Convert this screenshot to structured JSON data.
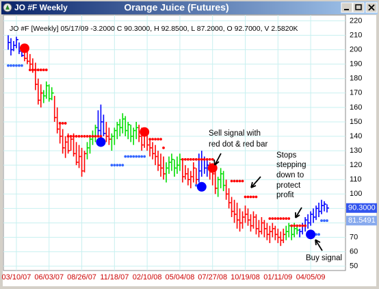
{
  "chart_data": {
    "type": "ohlc",
    "window_title": "JO #F Weekly",
    "title": "Orange Juice (Futures)",
    "info": "JO #F [Weekly] 05/17/09 -3.2000 C 90.3000, H 92.8500, L 87.2000, O 92.7000, V 2.5820K",
    "categories": [
      null,
      null,
      null,
      "03/10/07",
      null,
      null,
      null,
      null,
      null,
      null,
      null,
      null,
      null,
      null,
      null,
      "06/03/07",
      null,
      null,
      null,
      null,
      null,
      null,
      null,
      null,
      null,
      null,
      null,
      "08/26/07",
      null,
      null,
      null,
      null,
      null,
      null,
      null,
      null,
      null,
      null,
      null,
      "11/18/07",
      null,
      null,
      null,
      null,
      null,
      null,
      null,
      null,
      null,
      null,
      null,
      "02/10/08",
      null,
      null,
      null,
      null,
      null,
      null,
      null,
      null,
      null,
      null,
      null,
      "05/04/08",
      null,
      null,
      null,
      null,
      null,
      null,
      null,
      null,
      null,
      null,
      null,
      "07/27/08",
      null,
      null,
      null,
      null,
      null,
      null,
      null,
      null,
      null,
      null,
      null,
      "10/19/08",
      null,
      null,
      null,
      null,
      null,
      null,
      null,
      null,
      null,
      null,
      null,
      "01/11/09",
      null,
      null,
      null,
      null,
      null,
      null,
      null,
      null,
      null,
      null,
      null,
      "04/05/09",
      null,
      null,
      null,
      null,
      null,
      null
    ],
    "bars": [
      [
        210,
        200,
        205
      ],
      [
        208,
        196,
        200
      ],
      [
        206,
        199,
        203
      ],
      [
        209,
        201,
        207
      ],
      [
        205,
        197,
        199
      ],
      [
        203,
        195,
        196
      ],
      [
        202,
        192,
        194
      ],
      [
        199,
        190,
        192
      ],
      [
        197,
        187,
        190
      ],
      [
        194,
        184,
        186
      ],
      [
        191,
        172,
        176
      ],
      [
        180,
        162,
        165
      ],
      [
        176,
        160,
        170
      ],
      [
        172,
        163,
        168
      ],
      [
        178,
        166,
        175
      ],
      [
        176,
        164,
        166
      ],
      [
        174,
        165,
        170
      ],
      [
        168,
        150,
        153
      ],
      [
        160,
        142,
        145
      ],
      [
        150,
        135,
        140
      ],
      [
        145,
        128,
        132
      ],
      [
        140,
        125,
        136
      ],
      [
        142,
        128,
        130
      ],
      [
        140,
        130,
        138
      ],
      [
        142,
        126,
        128
      ],
      [
        136,
        120,
        122
      ],
      [
        134,
        118,
        126
      ],
      [
        132,
        112,
        116
      ],
      [
        130,
        115,
        128
      ],
      [
        136,
        124,
        132
      ],
      [
        140,
        128,
        138
      ],
      [
        144,
        134,
        140
      ],
      [
        148,
        136,
        146
      ],
      [
        158,
        140,
        144
      ],
      [
        162,
        136,
        150
      ],
      [
        155,
        140,
        142
      ],
      [
        150,
        136,
        140
      ],
      [
        146,
        134,
        138
      ],
      [
        142,
        130,
        140
      ],
      [
        146,
        134,
        144
      ],
      [
        150,
        138,
        148
      ],
      [
        152,
        140,
        146
      ],
      [
        156,
        142,
        152
      ],
      [
        154,
        140,
        144
      ],
      [
        150,
        138,
        148
      ],
      [
        148,
        136,
        140
      ],
      [
        146,
        134,
        144
      ],
      [
        150,
        138,
        146
      ],
      [
        148,
        136,
        140
      ],
      [
        146,
        130,
        134
      ],
      [
        144,
        132,
        142
      ],
      [
        142,
        130,
        134
      ],
      [
        138,
        126,
        132
      ],
      [
        136,
        124,
        128
      ],
      [
        134,
        120,
        126
      ],
      [
        130,
        116,
        120
      ],
      [
        128,
        112,
        118
      ],
      [
        126,
        110,
        114
      ],
      [
        122,
        108,
        118
      ],
      [
        126,
        114,
        122
      ],
      [
        128,
        116,
        124
      ],
      [
        124,
        112,
        118
      ],
      [
        126,
        114,
        120
      ],
      [
        128,
        116,
        124
      ],
      [
        124,
        108,
        112
      ],
      [
        120,
        110,
        114
      ],
      [
        118,
        106,
        110
      ],
      [
        116,
        104,
        112
      ],
      [
        122,
        108,
        118
      ],
      [
        118,
        106,
        110
      ],
      [
        128,
        108,
        116
      ],
      [
        130,
        112,
        124
      ],
      [
        126,
        114,
        118
      ],
      [
        124,
        112,
        120
      ],
      [
        122,
        110,
        118
      ],
      [
        118,
        106,
        114
      ],
      [
        116,
        100,
        104
      ],
      [
        112,
        98,
        110
      ],
      [
        118,
        104,
        114
      ],
      [
        116,
        102,
        106
      ],
      [
        110,
        96,
        100
      ],
      [
        104,
        90,
        94
      ],
      [
        98,
        84,
        88
      ],
      [
        96,
        80,
        86
      ],
      [
        94,
        76,
        82
      ],
      [
        90,
        74,
        80
      ],
      [
        88,
        76,
        84
      ],
      [
        92,
        80,
        86
      ],
      [
        90,
        78,
        82
      ],
      [
        86,
        74,
        78
      ],
      [
        88,
        76,
        84
      ],
      [
        86,
        72,
        76
      ],
      [
        82,
        70,
        74
      ],
      [
        84,
        72,
        80
      ],
      [
        82,
        70,
        76
      ],
      [
        80,
        68,
        72
      ],
      [
        78,
        66,
        74
      ],
      [
        80,
        70,
        76
      ],
      [
        78,
        68,
        72
      ],
      [
        76,
        66,
        70
      ],
      [
        74,
        64,
        68
      ],
      [
        76,
        66,
        72
      ],
      [
        78,
        68,
        74
      ],
      [
        80,
        70,
        78
      ],
      [
        78,
        68,
        72
      ],
      [
        80,
        70,
        76
      ],
      [
        78,
        72,
        75
      ],
      [
        76,
        70,
        74
      ],
      [
        80,
        72,
        78
      ],
      [
        84,
        74,
        82
      ],
      [
        86,
        76,
        80
      ],
      [
        88,
        78,
        86
      ],
      [
        90,
        80,
        84
      ],
      [
        92,
        82,
        90
      ],
      [
        94,
        84,
        88
      ],
      [
        96,
        86,
        92
      ],
      [
        95,
        88,
        93
      ],
      [
        92.85,
        87.2,
        90.3
      ]
    ],
    "bar_colors": [
      "#0000ff",
      "#0000ff",
      "#0000ff",
      "#0000ff",
      "#0000ff",
      "#0000ff",
      "#ff0000",
      "#ff0000",
      "#ff0000",
      "#ff0000",
      "#ff0000",
      "#ff0000",
      "#ff0000",
      "#00dd00",
      "#00dd00",
      "#00dd00",
      "#00dd00",
      "#ff0000",
      "#ff0000",
      "#ff0000",
      "#ff0000",
      "#ff0000",
      "#ff0000",
      "#ff0000",
      "#ff0000",
      "#ff0000",
      "#ff0000",
      "#ff0000",
      "#ff0000",
      "#00dd00",
      "#00dd00",
      "#00dd00",
      "#00dd00",
      "#0000ff",
      "#0000ff",
      "#0000ff",
      "#ff0000",
      "#ff0000",
      "#00dd00",
      "#00dd00",
      "#00dd00",
      "#00dd00",
      "#00dd00",
      "#00dd00",
      "#00dd00",
      "#00dd00",
      "#00dd00",
      "#00dd00",
      "#ff0000",
      "#ff0000",
      "#ff0000",
      "#ff0000",
      "#ff0000",
      "#ff0000",
      "#ff0000",
      "#ff0000",
      "#ff0000",
      "#ff0000",
      "#00dd00",
      "#00dd00",
      "#00dd00",
      "#00dd00",
      "#00dd00",
      "#00dd00",
      "#ff0000",
      "#ff0000",
      "#ff0000",
      "#ff0000",
      "#ff0000",
      "#ff0000",
      "#0000ff",
      "#0000ff",
      "#0000ff",
      "#0000ff",
      "#ff0000",
      "#ff0000",
      "#ff0000",
      "#00dd00",
      "#00dd00",
      "#00dd00",
      "#ff0000",
      "#ff0000",
      "#ff0000",
      "#ff0000",
      "#ff0000",
      "#ff0000",
      "#ff0000",
      "#ff0000",
      "#ff0000",
      "#ff0000",
      "#ff0000",
      "#ff0000",
      "#ff0000",
      "#ff0000",
      "#ff0000",
      "#ff0000",
      "#ff0000",
      "#ff0000",
      "#ff0000",
      "#ff0000",
      "#ff0000",
      "#ff0000",
      "#00dd00",
      "#00dd00",
      "#00dd00",
      "#00dd00",
      "#00dd00",
      "#0000ff",
      "#0000ff",
      "#0000ff",
      "#0000ff",
      "#0000ff",
      "#0000ff",
      "#0000ff",
      "#0000ff",
      "#0000ff",
      "#0000ff",
      "#0000ff"
    ],
    "stops": [
      {
        "color": "#ff0000",
        "values": [
          null,
          null,
          null,
          null,
          null,
          null,
          null,
          null,
          186,
          186,
          186,
          186,
          186,
          186,
          186,
          null,
          null,
          null,
          null,
          149,
          149,
          149,
          140,
          140,
          140,
          140,
          140,
          140,
          140,
          140,
          140,
          140,
          140,
          140,
          140,
          null,
          null,
          null,
          null,
          null,
          null,
          null,
          null,
          null,
          null,
          null,
          null,
          null,
          null,
          null,
          null,
          null,
          138,
          138,
          138,
          138,
          138,
          132,
          null,
          null,
          null,
          null,
          null,
          null,
          124,
          124,
          124,
          124,
          124,
          124,
          124,
          124,
          124,
          124,
          124,
          124,
          null,
          null,
          null,
          null,
          null,
          null,
          109,
          109,
          109,
          109,
          109,
          98,
          98,
          98,
          98,
          98,
          null,
          null,
          null,
          null,
          83,
          83,
          83,
          83,
          83,
          83,
          83,
          83,
          78,
          78,
          78,
          78,
          78,
          78,
          null,
          null,
          null,
          null,
          null,
          null,
          null,
          null
        ]
      },
      {
        "color": "#3366ff",
        "values": [
          189,
          189,
          189,
          189,
          189,
          189,
          null,
          null,
          null,
          null,
          null,
          null,
          null,
          null,
          null,
          null,
          null,
          null,
          null,
          null,
          null,
          null,
          null,
          null,
          null,
          null,
          null,
          null,
          null,
          null,
          null,
          null,
          null,
          null,
          null,
          null,
          null,
          null,
          120,
          120,
          120,
          120,
          120,
          126,
          126,
          126,
          126,
          126,
          126,
          126,
          126,
          null,
          null,
          null,
          null,
          null,
          null,
          null,
          null,
          null,
          null,
          null,
          null,
          null,
          null,
          null,
          null,
          null,
          null,
          106,
          106,
          106,
          null,
          null,
          null,
          null,
          null,
          null,
          null,
          null,
          null,
          null,
          null,
          null,
          null,
          null,
          null,
          null,
          null,
          null,
          null,
          null,
          null,
          null,
          null,
          null,
          null,
          null,
          null,
          null,
          null,
          null,
          null,
          null,
          null,
          null,
          null,
          null,
          null,
          null,
          72,
          72,
          72,
          72,
          72,
          81.5491,
          81.5491,
          81.5491
        ]
      }
    ],
    "signals": {
      "x": [
        6,
        34,
        50,
        71,
        75,
        111
      ],
      "values": [
        201,
        136,
        143,
        105,
        118,
        72
      ],
      "colors": [
        "#ff0000",
        "#0000ff",
        "#ff0000",
        "#0000ff",
        "#ff0000",
        "#0000ff"
      ]
    },
    "last_prices": {
      "values": [
        90.3,
        81.5491
      ],
      "value_labels": [
        "90.3000",
        "81.5491"
      ],
      "colors": [
        "#3355ee",
        "#88aaee"
      ]
    },
    "annotations": [
      [
        "Sell signal with",
        "red dot & red bar"
      ],
      [
        "Stops",
        "stepping",
        "down to",
        "protect",
        "profit"
      ],
      [
        "Buy signal"
      ]
    ],
    "ylim": [
      47,
      224
    ],
    "yticks": [
      50,
      60,
      70,
      80,
      90,
      100,
      110,
      120,
      130,
      140,
      150,
      160,
      170,
      180,
      190,
      200,
      210,
      220
    ],
    "grid": true,
    "grid_color": "#c8f0f0"
  }
}
